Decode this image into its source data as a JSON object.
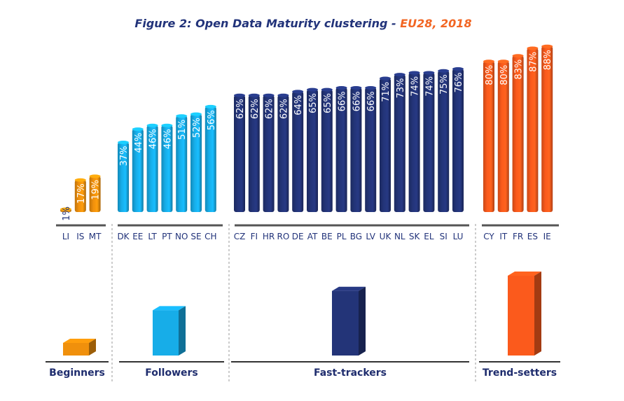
{
  "chart_data": {
    "type": "bar",
    "title": "Figure 2: Open Data Maturity clustering - ",
    "title_highlight": "EU28, 2018",
    "title_colors": {
      "main": "#22337a",
      "highlight": "#f26522"
    },
    "value_suffix": "%",
    "ylim": [
      0,
      100
    ],
    "grid": false,
    "groups": [
      {
        "name": "Beginners",
        "color": "#f0900c",
        "categories": [
          "LI",
          "IS",
          "MT"
        ],
        "values": [
          1,
          17,
          19
        ]
      },
      {
        "name": "Followers",
        "color": "#17ade8",
        "categories": [
          "DK",
          "EE",
          "LT",
          "PT",
          "NO",
          "SE",
          "CH"
        ],
        "values": [
          37,
          44,
          46,
          46,
          51,
          52,
          56
        ]
      },
      {
        "name": "Fast-trackers",
        "color": "#233478",
        "categories": [
          "CZ",
          "FI",
          "HR",
          "RO",
          "DE",
          "AT",
          "BE",
          "PL",
          "BG",
          "LV",
          "UK",
          "NL",
          "SK",
          "EL",
          "SI",
          "LU"
        ],
        "values": [
          62,
          62,
          62,
          62,
          64,
          65,
          65,
          66,
          66,
          66,
          71,
          73,
          74,
          74,
          75,
          76
        ]
      },
      {
        "name": "Trend-setters",
        "color": "#fb5a1c",
        "categories": [
          "CY",
          "IT",
          "FR",
          "ES",
          "IE"
        ],
        "values": [
          80,
          80,
          83,
          87,
          88
        ]
      }
    ]
  }
}
